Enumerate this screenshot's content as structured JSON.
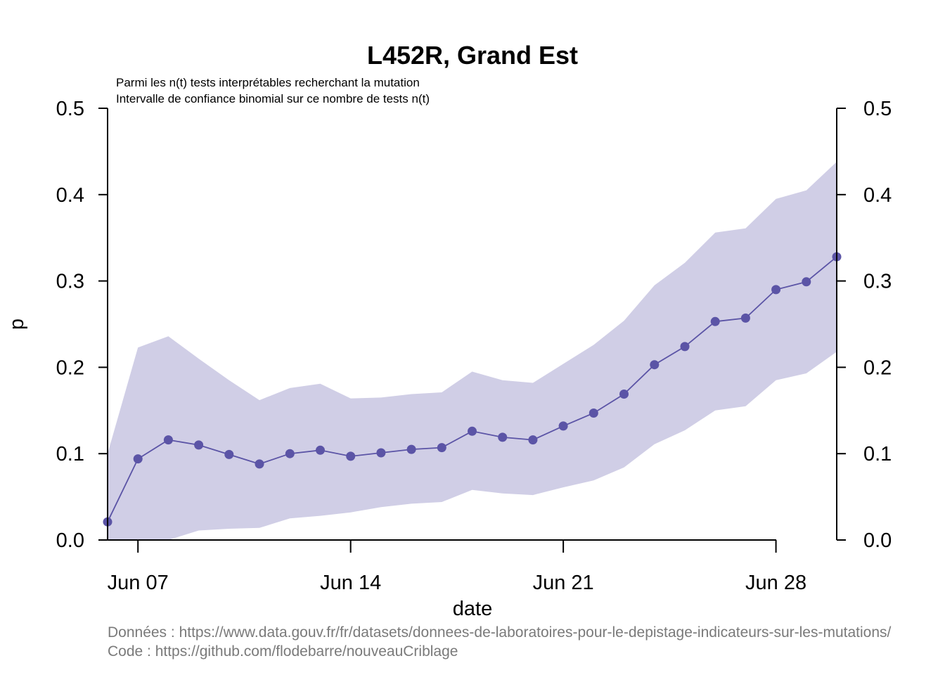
{
  "chart_data": {
    "type": "line",
    "title": "L452R, Grand Est",
    "subtitle_lines": [
      "Parmi les n(t) tests interprétables recherchant la mutation",
      "Intervalle de confiance binomial sur ce nombre de tests n(t)"
    ],
    "xlabel": "date",
    "ylabel": "p",
    "x_ticks": [
      {
        "date": "2021-06-07",
        "label": "Jun 07"
      },
      {
        "date": "2021-06-14",
        "label": "Jun 14"
      },
      {
        "date": "2021-06-21",
        "label": "Jun 21"
      },
      {
        "date": "2021-06-28",
        "label": "Jun 28"
      }
    ],
    "xlim": [
      "2021-06-06",
      "2021-06-30"
    ],
    "ylim": [
      0,
      0.5
    ],
    "y_ticks": [
      "0.0",
      "0.1",
      "0.2",
      "0.3",
      "0.4",
      "0.5"
    ],
    "right_axis": true,
    "colors": {
      "line": "#5b54a6",
      "ribbon": "#d0cee6"
    },
    "series": [
      {
        "x": [
          "2021-06-06",
          "2021-06-07",
          "2021-06-08",
          "2021-06-09",
          "2021-06-10",
          "2021-06-11",
          "2021-06-12",
          "2021-06-13",
          "2021-06-14",
          "2021-06-15",
          "2021-06-16",
          "2021-06-17",
          "2021-06-18",
          "2021-06-19",
          "2021-06-20",
          "2021-06-21",
          "2021-06-22",
          "2021-06-23",
          "2021-06-24",
          "2021-06-25",
          "2021-06-26",
          "2021-06-27",
          "2021-06-28",
          "2021-06-29",
          "2021-06-30"
        ],
        "y": [
          0.021,
          0.094,
          0.116,
          0.11,
          0.099,
          0.088,
          0.1,
          0.104,
          0.097,
          0.101,
          0.105,
          0.107,
          0.126,
          0.119,
          0.116,
          0.132,
          0.147,
          0.169,
          0.203,
          0.224,
          0.253,
          0.257,
          0.29,
          0.299,
          0.328
        ],
        "lower": [
          0.0,
          0.0,
          0.0,
          0.011,
          0.013,
          0.014,
          0.025,
          0.028,
          0.032,
          0.038,
          0.042,
          0.044,
          0.058,
          0.054,
          0.052,
          0.061,
          0.069,
          0.084,
          0.111,
          0.127,
          0.15,
          0.155,
          0.185,
          0.193,
          0.218
        ],
        "upper": [
          0.1,
          0.223,
          0.236,
          0.21,
          0.185,
          0.162,
          0.176,
          0.181,
          0.164,
          0.165,
          0.169,
          0.171,
          0.195,
          0.185,
          0.182,
          0.204,
          0.226,
          0.254,
          0.295,
          0.321,
          0.356,
          0.361,
          0.395,
          0.405,
          0.438
        ]
      }
    ],
    "source_lines": [
      "Données : https://www.data.gouv.fr/fr/datasets/donnees-de-laboratoires-pour-le-depistage-indicateurs-sur-les-mutations/",
      "Code : https://github.com/flodebarre/nouveauCriblage"
    ]
  }
}
